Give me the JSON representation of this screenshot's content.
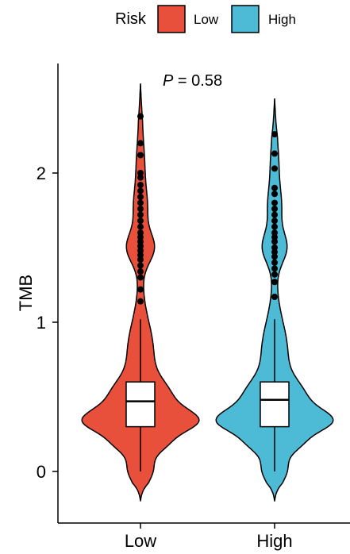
{
  "chart_data": {
    "type": "violin",
    "ylabel": "TMB",
    "xlabel": "",
    "categories": [
      "Low",
      "High"
    ],
    "ylim": [
      -0.2,
      2.7
    ],
    "yticks": [
      0,
      1,
      2
    ],
    "legend": {
      "title": "Risk",
      "placement": "top",
      "entries": [
        {
          "label": "Low",
          "color": "#E9503B"
        },
        {
          "label": "High",
          "color": "#4DBBD5"
        }
      ]
    },
    "annotation": {
      "p_prefix": "P",
      "p_value": " = 0.58"
    },
    "series": [
      {
        "group": "Low",
        "color": "#E9503B",
        "box": {
          "q1": 0.3,
          "median": 0.47,
          "q3": 0.6,
          "whisker_low": 0.0,
          "whisker_high": 1.02
        },
        "violin_range": [
          -0.2,
          2.6
        ],
        "outliers": [
          1.14,
          1.22,
          1.3,
          1.34,
          1.38,
          1.42,
          1.45,
          1.48,
          1.51,
          1.54,
          1.57,
          1.6,
          1.64,
          1.68,
          1.72,
          1.76,
          1.8,
          1.84,
          1.88,
          1.92,
          1.97,
          2.0,
          2.12,
          2.2,
          2.38
        ]
      },
      {
        "group": "High",
        "color": "#4DBBD5",
        "box": {
          "q1": 0.3,
          "median": 0.48,
          "q3": 0.6,
          "whisker_low": 0.0,
          "whisker_high": 1.02
        },
        "violin_range": [
          -0.2,
          2.5
        ],
        "outliers": [
          1.17,
          1.27,
          1.32,
          1.36,
          1.4,
          1.44,
          1.47,
          1.5,
          1.54,
          1.57,
          1.6,
          1.64,
          1.68,
          1.72,
          1.76,
          1.8,
          1.86,
          1.9,
          2.03,
          2.13,
          2.26
        ]
      }
    ]
  }
}
